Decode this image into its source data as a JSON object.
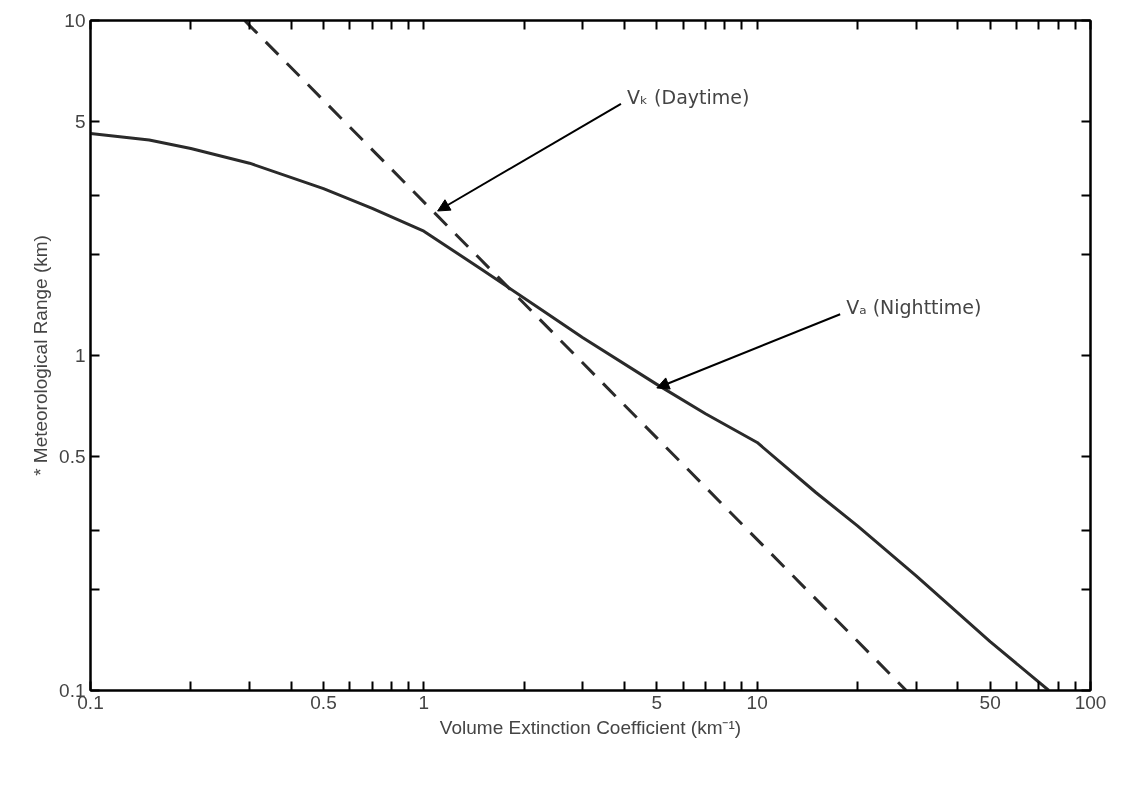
{
  "chart_data": {
    "type": "line",
    "xlabel": "Volume Extinction Coefficient (km⁻¹)",
    "ylabel": "* Meteorological Range (km)",
    "log": "xy",
    "grid": false,
    "marker": "none",
    "xlim": [
      0.1,
      100
    ],
    "ylim": [
      0.1,
      10
    ],
    "xticks": [
      0.1,
      {
        "value": 0.2,
        "label": null
      },
      {
        "value": 0.3,
        "label": null
      },
      {
        "value": 0.4,
        "label": null
      },
      0.5,
      {
        "value": 0.6,
        "label": null
      },
      {
        "value": 0.7,
        "label": null
      },
      {
        "value": 0.8,
        "label": null
      },
      {
        "value": 0.9,
        "label": null
      },
      1,
      {
        "value": 2,
        "label": null
      },
      {
        "value": 3,
        "label": null
      },
      {
        "value": 4,
        "label": null
      },
      5,
      {
        "value": 6,
        "label": null
      },
      {
        "value": 7,
        "label": null
      },
      {
        "value": 8,
        "label": null
      },
      {
        "value": 9,
        "label": null
      },
      10,
      {
        "value": 20,
        "label": null
      },
      {
        "value": 30,
        "label": null
      },
      {
        "value": 40,
        "label": null
      },
      50,
      {
        "value": 60,
        "label": null
      },
      {
        "value": 70,
        "label": null
      },
      {
        "value": 80,
        "label": null
      },
      {
        "value": 90,
        "label": null
      },
      100
    ],
    "yticks": [
      0.1,
      {
        "value": 0.2,
        "label": null
      },
      {
        "value": 0.3,
        "label": null
      },
      0.5,
      1,
      {
        "value": 2,
        "label": null
      },
      {
        "value": 3,
        "label": null
      },
      5,
      10
    ],
    "series": [
      {
        "color": "#2a2a2a",
        "line_style": "dashed",
        "x": [
          0.29,
          28
        ],
        "values": [
          10,
          0.1
        ]
      },
      {
        "color": "#2a2a2a",
        "line_style": "solid",
        "x": [
          0.1,
          0.15,
          0.2,
          0.3,
          0.5,
          0.7,
          1,
          1.5,
          2.3,
          3,
          5,
          7,
          10,
          15,
          20,
          30,
          50,
          75
        ],
        "values": [
          4.6,
          4.4,
          4.15,
          3.75,
          3.15,
          2.75,
          2.35,
          1.8,
          1.35,
          1.13,
          0.82,
          0.67,
          0.55,
          0.39,
          0.31,
          0.22,
          0.14,
          0.1
        ]
      }
    ],
    "annotations": [
      {
        "text": "Vₖ (Daytime)",
        "x": 1.1,
        "y": 2.7
      },
      {
        "text": "Vₐ (Nighttime)",
        "x": 5,
        "y": 0.8
      }
    ]
  }
}
